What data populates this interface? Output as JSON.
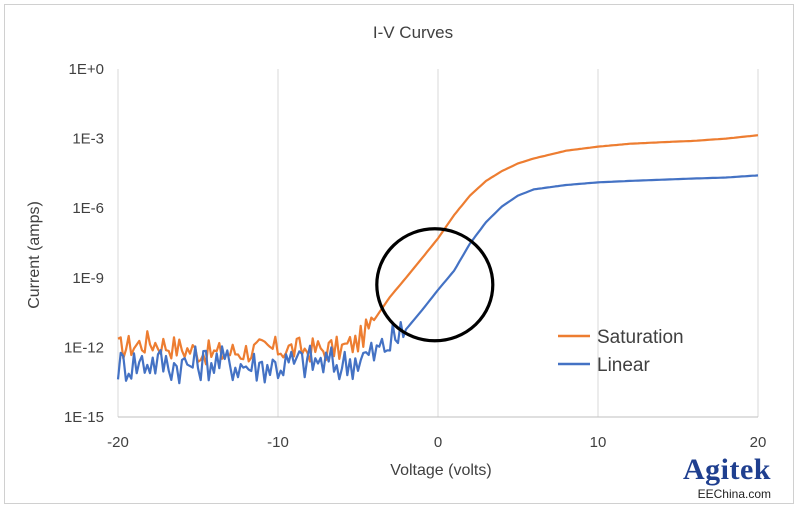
{
  "chart_data": {
    "type": "line",
    "title": "I-V Curves",
    "xlabel": "Voltage (volts)",
    "ylabel": "Current (amps)",
    "xlim": [
      -20,
      20
    ],
    "ylim_log10": [
      -15,
      0
    ],
    "yscale": "log",
    "grid": "vertical",
    "x_ticks": [
      -20,
      -10,
      0,
      10,
      20
    ],
    "x_tick_labels": [
      "-20",
      "-10",
      "0",
      "10",
      "20"
    ],
    "y_ticks_log10": [
      0,
      -3,
      -6,
      -9,
      -12,
      -15
    ],
    "y_tick_labels": [
      "1E+0",
      "1E-3",
      "1E-6",
      "1E-9",
      "1E-12",
      "1E-15"
    ],
    "legend_position": "bottom-right",
    "series": [
      {
        "name": "Saturation",
        "color": "#ed7d31",
        "x": [
          -20,
          -18,
          -16,
          -14,
          -12,
          -10,
          -8,
          -6,
          -5,
          -4,
          -3,
          -2,
          -1,
          0,
          1,
          2,
          3,
          4,
          5,
          6,
          8,
          10,
          12,
          14,
          16,
          18,
          20
        ],
        "y": [
          1e-12,
          2e-12,
          1e-12,
          6e-13,
          8e-13,
          1e-12,
          9e-13,
          1e-12,
          2e-12,
          1.5e-11,
          1.5e-10,
          1e-09,
          7e-09,
          5e-08,
          5e-07,
          3.5e-06,
          1.5e-05,
          4e-05,
          8.5e-05,
          0.00014,
          0.0003,
          0.00045,
          0.0006,
          0.0007,
          0.0008,
          0.001,
          0.0014
        ]
      },
      {
        "name": "Linear",
        "color": "#4472c4",
        "x": [
          -20,
          -18,
          -16,
          -14,
          -12,
          -10,
          -8,
          -6,
          -5,
          -4,
          -3,
          -2,
          -1,
          0,
          1,
          2,
          3,
          4,
          5,
          6,
          8,
          10,
          12,
          14,
          16,
          18,
          20
        ],
        "y": [
          2e-13,
          3e-13,
          2e-13,
          3e-13,
          2e-13,
          2e-13,
          3e-13,
          2e-13,
          4e-13,
          6e-13,
          2e-12,
          6e-12,
          4e-11,
          3e-10,
          2e-09,
          3e-08,
          2.5e-07,
          1.2e-06,
          3.5e-06,
          6.5e-06,
          1e-05,
          1.3e-05,
          1.5e-05,
          1.7e-05,
          1.9e-05,
          2.1e-05,
          2.6e-05
        ]
      }
    ]
  },
  "annotation": {
    "type": "circle",
    "center_x": -0.2,
    "center_y_log10": -9.3,
    "shape": "circle-highlight"
  },
  "logo": {
    "brand": "Agitek",
    "site": "EEChina.com",
    "brand_color": "#1f3f8f"
  }
}
